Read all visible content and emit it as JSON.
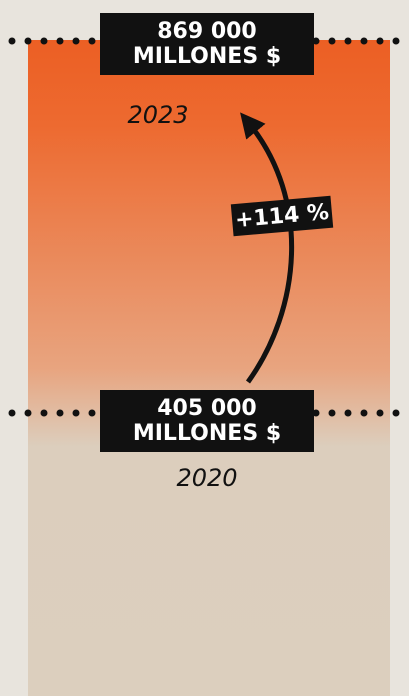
{
  "top": {
    "amount": "869 000",
    "unit": "MILLONES $",
    "year": "2023"
  },
  "change": "+114 %",
  "bottom": {
    "amount": "405 000",
    "unit": "MILLONES $",
    "year": "2020"
  }
}
